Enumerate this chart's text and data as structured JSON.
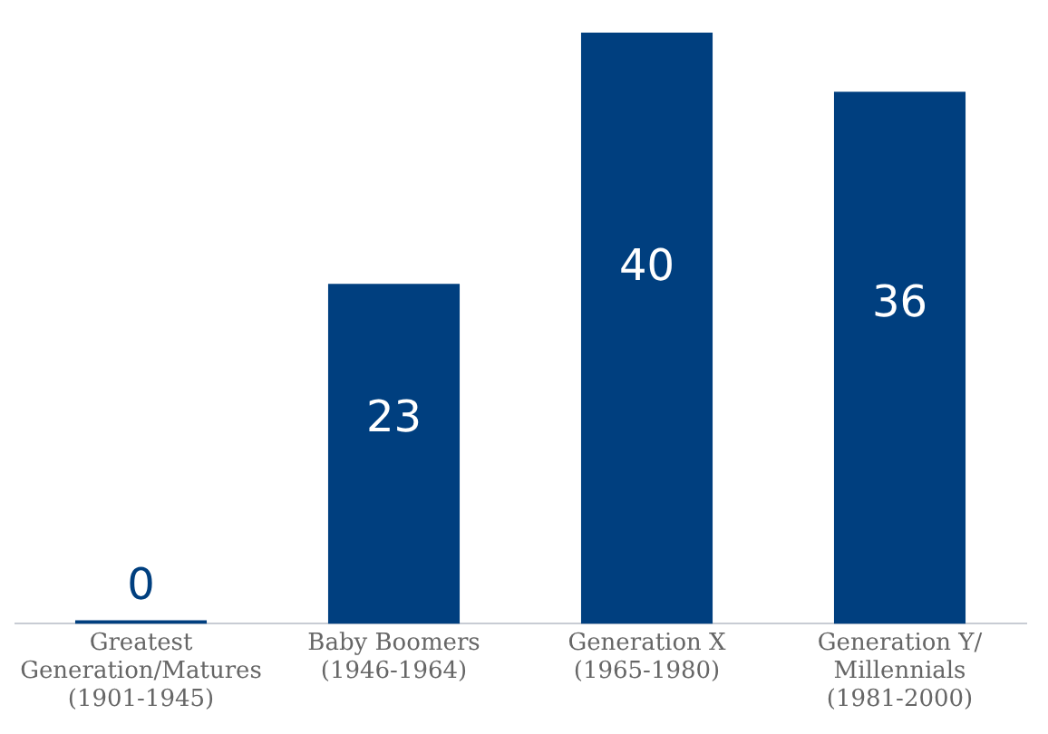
{
  "chart_data": {
    "type": "bar",
    "categories": [
      "Greatest\nGeneration/Matures\n(1901-1945)",
      "Baby Boomers\n(1946-1964)",
      "Generation X\n(1965-1980)",
      "Generation Y/\nMillennials\n(1981-2000)"
    ],
    "values": [
      0,
      23,
      40,
      36
    ],
    "color": "#003f7f",
    "data_labels": true,
    "grid": false,
    "legend": false
  }
}
